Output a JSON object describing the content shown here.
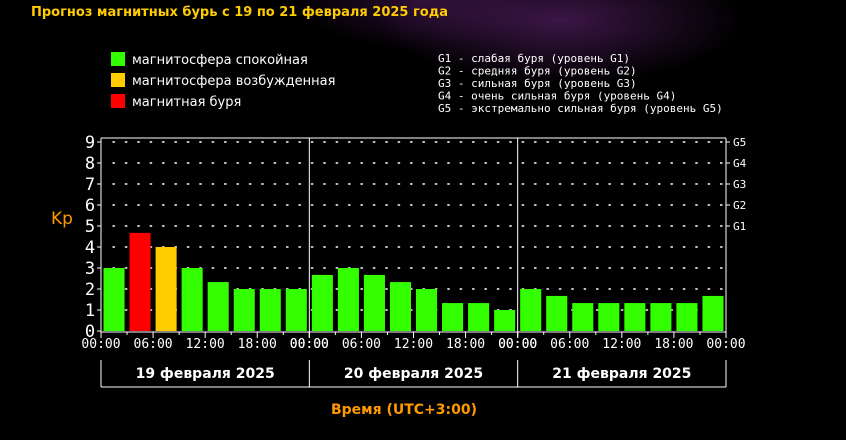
{
  "title": "Прогноз магнитных бурь с 19 по 21 февраля 2025 года",
  "legend": [
    {
      "label": "магнитосфера спокойная",
      "color": "#33ff00"
    },
    {
      "label": "магнитосфера возбужденная",
      "color": "#ffcc00"
    },
    {
      "label": "магнитная буря",
      "color": "#ff0000"
    }
  ],
  "g_levels": [
    "G1 - слабая буря (уровень G1)",
    "G2 - средняя буря (уровень G2)",
    "G3 - сильная буря (уровень G3)",
    "G4 - очень сильная буря (уровень G4)",
    "G5 - экстремально сильная буря (уровень G5)"
  ],
  "chart_data": {
    "type": "bar",
    "ylabel": "Kp",
    "xlabel": "Время (UTC+3:00)",
    "ylim": [
      0,
      9
    ],
    "y_ticks": [
      "0",
      "1",
      "2",
      "3",
      "4",
      "5",
      "6",
      "7",
      "8",
      "9"
    ],
    "right_ticks": [
      {
        "label": "G1",
        "value": 5
      },
      {
        "label": "G2",
        "value": 6
      },
      {
        "label": "G3",
        "value": 7
      },
      {
        "label": "G4",
        "value": 8
      },
      {
        "label": "G5",
        "value": 9
      }
    ],
    "x_tick_labels": [
      "00:00",
      "06:00",
      "12:00",
      "18:00",
      "00:00"
    ],
    "grid": true,
    "days": [
      {
        "label": "19 февраля 2025",
        "values": [
          3,
          4.67,
          4,
          3,
          2.33,
          2,
          2,
          2
        ],
        "colors": [
          "#33ff00",
          "#ff0000",
          "#ffcc00",
          "#33ff00",
          "#33ff00",
          "#33ff00",
          "#33ff00",
          "#33ff00"
        ]
      },
      {
        "label": "20 февраля 2025",
        "values": [
          2.67,
          3,
          2.67,
          2.33,
          2,
          1.33,
          1.33,
          1
        ],
        "colors": [
          "#33ff00",
          "#33ff00",
          "#33ff00",
          "#33ff00",
          "#33ff00",
          "#33ff00",
          "#33ff00",
          "#33ff00"
        ]
      },
      {
        "label": "21 февраля 2025",
        "values": [
          2,
          1.67,
          1.33,
          1.33,
          1.33,
          1.33,
          1.33,
          1.67
        ],
        "colors": [
          "#33ff00",
          "#33ff00",
          "#33ff00",
          "#33ff00",
          "#33ff00",
          "#33ff00",
          "#33ff00",
          "#33ff00"
        ]
      }
    ]
  }
}
